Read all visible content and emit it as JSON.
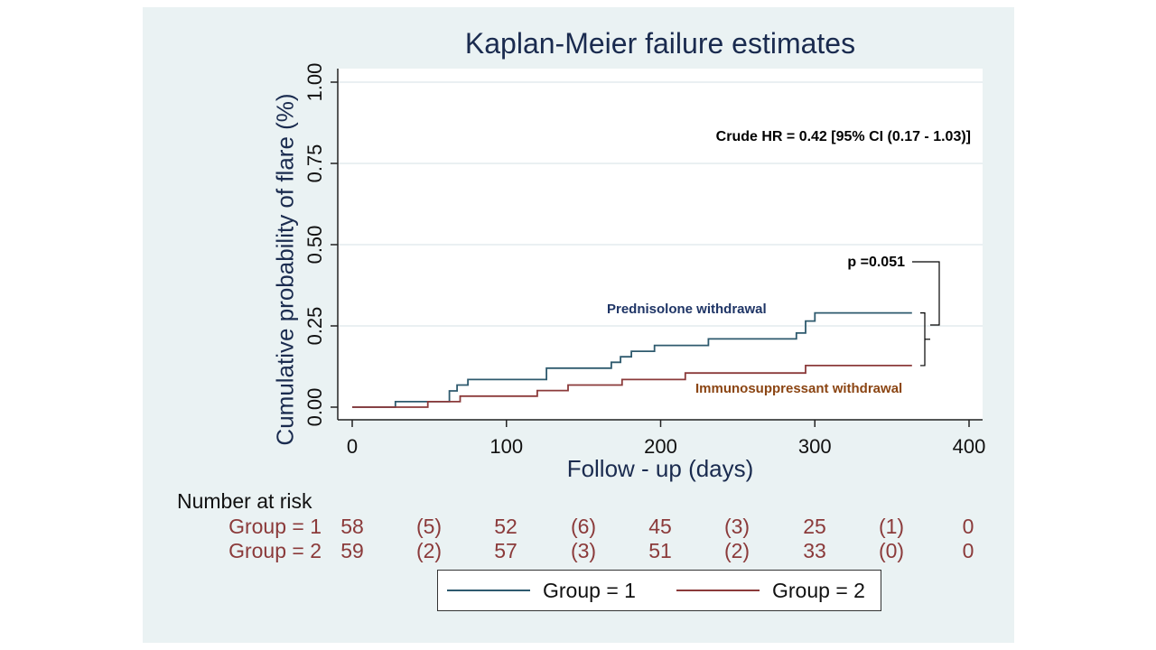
{
  "chart_data": {
    "type": "line",
    "title": "Kaplan-Meier failure estimates",
    "xlabel": "Follow - up (days)",
    "ylabel": "Cumulative probability of flare (%)",
    "xlim": [
      0,
      400
    ],
    "ylim": [
      0,
      1
    ],
    "xticks": [
      "0",
      "100",
      "200",
      "300",
      "400"
    ],
    "yticks": [
      "0.00",
      "0.25",
      "0.50",
      "0.75",
      "1.00"
    ],
    "grid": true,
    "legend_position": "bottom",
    "series": [
      {
        "name": "Group = 1",
        "color": "#2e5a6e",
        "points": [
          [
            0,
            0
          ],
          [
            28,
            0
          ],
          [
            28,
            0.017
          ],
          [
            63,
            0.017
          ],
          [
            63,
            0.05
          ],
          [
            68,
            0.05
          ],
          [
            68,
            0.068
          ],
          [
            75,
            0.068
          ],
          [
            75,
            0.085
          ],
          [
            126,
            0.085
          ],
          [
            126,
            0.12
          ],
          [
            168,
            0.12
          ],
          [
            168,
            0.138
          ],
          [
            174,
            0.138
          ],
          [
            174,
            0.155
          ],
          [
            181,
            0.155
          ],
          [
            181,
            0.172
          ],
          [
            196,
            0.172
          ],
          [
            196,
            0.19
          ],
          [
            231,
            0.19
          ],
          [
            231,
            0.21
          ],
          [
            288,
            0.21
          ],
          [
            288,
            0.228
          ],
          [
            294,
            0.228
          ],
          [
            294,
            0.265
          ],
          [
            300,
            0.265
          ],
          [
            300,
            0.29
          ],
          [
            363,
            0.29
          ]
        ]
      },
      {
        "name": "Group = 2",
        "color": "#8b3a3a",
        "points": [
          [
            0,
            0
          ],
          [
            49,
            0
          ],
          [
            49,
            0.017
          ],
          [
            70,
            0.017
          ],
          [
            70,
            0.034
          ],
          [
            120,
            0.034
          ],
          [
            120,
            0.051
          ],
          [
            140,
            0.051
          ],
          [
            140,
            0.068
          ],
          [
            175,
            0.068
          ],
          [
            175,
            0.085
          ],
          [
            216,
            0.085
          ],
          [
            216,
            0.105
          ],
          [
            294,
            0.105
          ],
          [
            294,
            0.128
          ],
          [
            363,
            0.128
          ]
        ]
      }
    ],
    "annotations": {
      "hr": "Crude HR = 0.42 [95% CI (0.17 - 1.03)]",
      "p": "p =0.051",
      "label1": "Prednisolone withdrawal",
      "label2": "Immunosuppressant withdrawal"
    },
    "risk_table": {
      "title": "Number at risk",
      "rows": [
        {
          "label": "Group = 1",
          "values": [
            "58",
            "(5)",
            "52",
            "(6)",
            "45",
            "(3)",
            "25",
            "(1)",
            "0"
          ]
        },
        {
          "label": "Group = 2",
          "values": [
            "59",
            "(2)",
            "57",
            "(3)",
            "51",
            "(2)",
            "33",
            "(0)",
            "0"
          ]
        }
      ]
    },
    "colors": {
      "label1": "#1f3566",
      "label2": "#8b4513",
      "axis": "#222222"
    }
  }
}
